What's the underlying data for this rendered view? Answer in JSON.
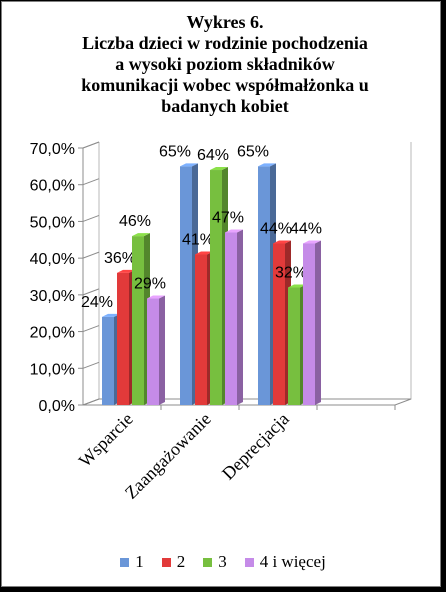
{
  "chart_data": {
    "type": "bar",
    "title_lines": [
      "Wykres 6.",
      "Liczba dzieci  w rodzinie pochodzenia",
      "a wysoki poziom składników",
      "komunikacji wobec współmałżonka u",
      "badanych kobiet"
    ],
    "categories": [
      "Wsparcie",
      "Zaangażowanie",
      "Deprecjacja"
    ],
    "series": [
      {
        "name": "1",
        "values": [
          24,
          65,
          65
        ],
        "labels": [
          "24%",
          "65%",
          "65%"
        ],
        "color": "#6a96d8"
      },
      {
        "name": "2",
        "values": [
          36,
          41,
          44
        ],
        "labels": [
          "36%",
          "41%",
          "44%"
        ],
        "color": "#e23a3a"
      },
      {
        "name": "3",
        "values": [
          46,
          64,
          32
        ],
        "labels": [
          "46%",
          "64%",
          "32%"
        ],
        "color": "#77bf3f"
      },
      {
        "name": "4 i więcej",
        "values": [
          29,
          47,
          44
        ],
        "labels": [
          "29%",
          "47%",
          "44%"
        ],
        "color": "#c58be8"
      }
    ],
    "y_ticks": [
      "0,0%",
      "10,0%",
      "20,0%",
      "30,0%",
      "40,0%",
      "50,0%",
      "60,0%",
      "70,0%"
    ],
    "ylim": [
      0,
      70
    ],
    "grid": false,
    "legend": "bottom",
    "style": "3d-clustered-column"
  }
}
